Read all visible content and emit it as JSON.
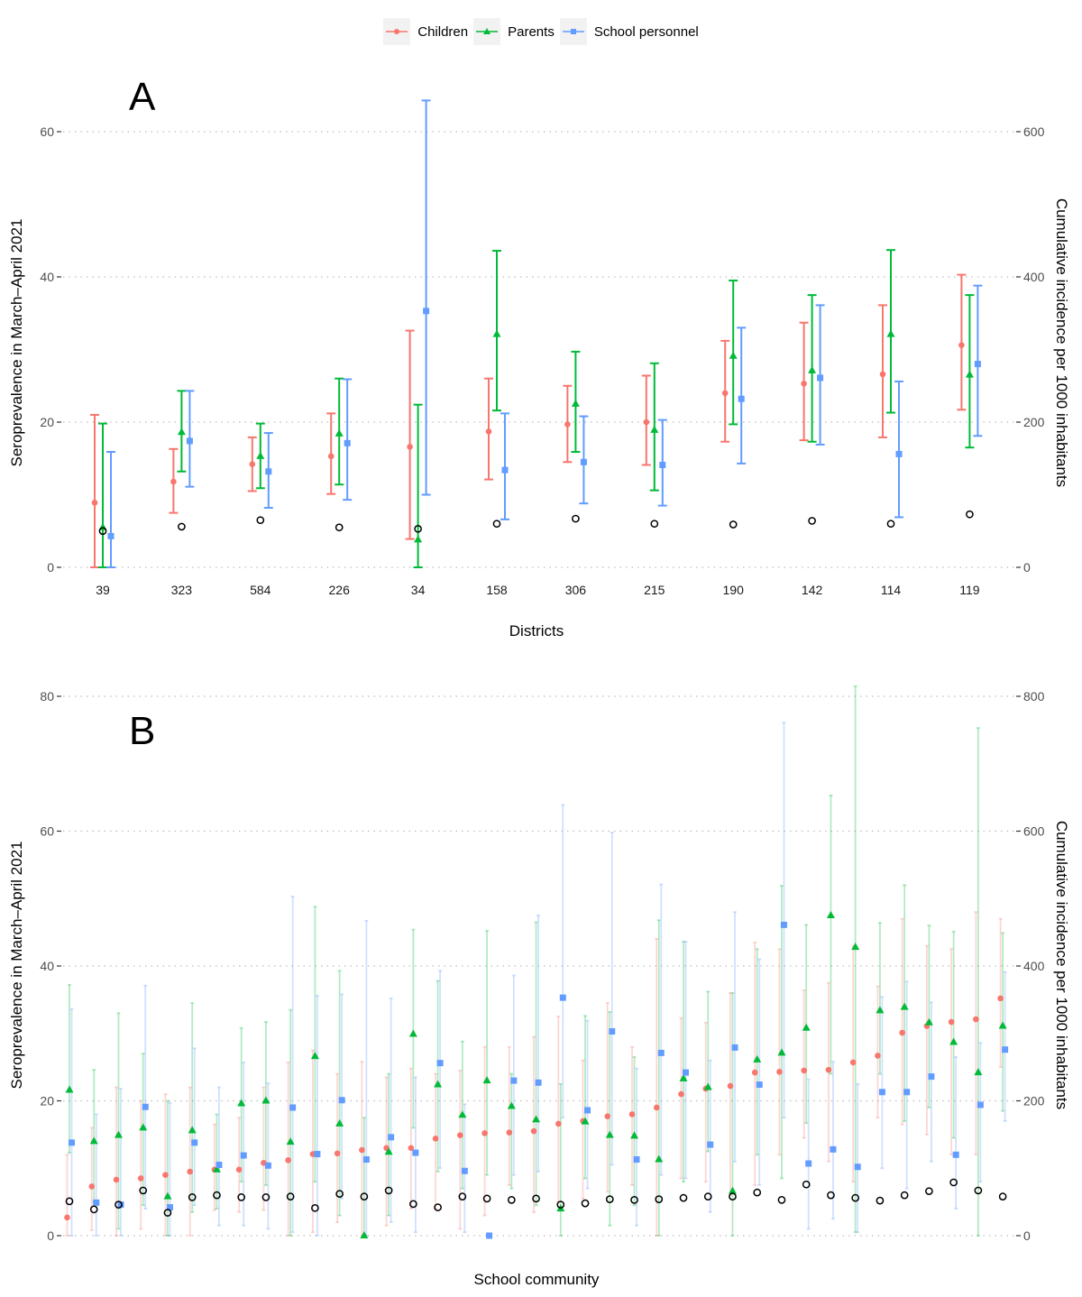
{
  "legend": {
    "items": [
      {
        "label": "Children",
        "color": "#F8766D",
        "shape": "circle"
      },
      {
        "label": "Parents",
        "color": "#00BA38",
        "shape": "triangle"
      },
      {
        "label": "School personnel",
        "color": "#619CFF",
        "shape": "square"
      }
    ]
  },
  "chart_data": [
    {
      "type": "scatter",
      "panel_label": "A",
      "xlabel": "Districts",
      "ylabel": "Seroprevalence in March–April 2021",
      "y2label": "Cumulative incidence per 1000 inhabitants",
      "ylim": [
        0,
        60
      ],
      "y2lim": [
        0,
        600
      ],
      "yticks": [
        "0",
        "20",
        "40",
        "60"
      ],
      "y2ticks": [
        "0",
        "200",
        "400",
        "600"
      ],
      "grid": true,
      "categories": [
        "39",
        "323",
        "584",
        "226",
        "34",
        "158",
        "306",
        "215",
        "190",
        "142",
        "114",
        "119"
      ],
      "series": [
        {
          "name": "Children",
          "values": [
            8.9,
            11.8,
            14.2,
            15.3,
            16.6,
            18.7,
            19.7,
            20.0,
            24.0,
            25.3,
            26.6,
            30.6
          ],
          "lower": [
            0,
            7.5,
            10.5,
            10.1,
            3.9,
            12.1,
            14.5,
            14.1,
            17.3,
            17.5,
            17.9,
            21.7
          ],
          "upper": [
            21.0,
            16.3,
            17.9,
            21.2,
            32.6,
            26.0,
            25.0,
            26.4,
            31.2,
            33.7,
            36.1,
            40.3
          ]
        },
        {
          "name": "Parents",
          "values": [
            5.5,
            18.6,
            15.3,
            18.4,
            3.8,
            32.1,
            22.5,
            18.9,
            29.1,
            27.1,
            32.1,
            26.5
          ],
          "lower": [
            0,
            13.2,
            10.9,
            11.4,
            0,
            21.6,
            15.9,
            10.6,
            19.7,
            17.3,
            21.3,
            16.5
          ],
          "upper": [
            19.8,
            24.3,
            19.8,
            26.0,
            22.4,
            43.6,
            29.7,
            28.1,
            39.5,
            37.5,
            43.7,
            37.5
          ]
        },
        {
          "name": "School personnel",
          "values": [
            4.3,
            17.4,
            13.2,
            17.1,
            35.3,
            13.4,
            14.5,
            14.1,
            23.2,
            26.1,
            15.6,
            28.0
          ],
          "lower": [
            0,
            11.1,
            8.2,
            9.3,
            10.0,
            6.6,
            8.8,
            8.5,
            14.3,
            16.9,
            6.9,
            18.1
          ],
          "upper": [
            15.9,
            24.3,
            18.5,
            25.9,
            64.3,
            21.2,
            20.8,
            20.3,
            33.0,
            36.1,
            25.6,
            38.8
          ]
        }
      ],
      "cumulative_incidence": [
        50,
        56,
        65,
        55,
        53,
        60,
        67,
        60,
        59,
        64,
        60,
        73
      ]
    },
    {
      "type": "scatter",
      "panel_label": "B",
      "xlabel": "School community",
      "ylabel": "Seroprevalence in March–April 2021",
      "y2label": "Cumulative incidence per 1000 inhabitants",
      "ylim": [
        0,
        80
      ],
      "y2lim": [
        0,
        800
      ],
      "yticks": [
        "0",
        "20",
        "40",
        "60",
        "80"
      ],
      "y2ticks": [
        "0",
        "200",
        "400",
        "600",
        "800"
      ],
      "grid": true,
      "n_groups": 39,
      "series": [
        {
          "name": "Children",
          "values": [
            2.7,
            7.3,
            8.3,
            8.5,
            9.0,
            9.5,
            9.8,
            9.8,
            10.8,
            11.2,
            12.1,
            12.2,
            12.7,
            13.0,
            13.0,
            14.4,
            14.9,
            15.2,
            15.3,
            15.5,
            16.6,
            17.0,
            17.7,
            18.0,
            19.0,
            21.0,
            21.8,
            22.2,
            24.2,
            24.3,
            24.5,
            24.6,
            25.7,
            26.7,
            30.1,
            31.1,
            31.7,
            32.1,
            35.2
          ],
          "lower": [
            0,
            0.8,
            0,
            1.0,
            0,
            0,
            3.8,
            3.5,
            3.8,
            0,
            0.5,
            2.0,
            0,
            1.5,
            4.0,
            4.0,
            1.0,
            3.0,
            7.5,
            3.5,
            5.0,
            5.5,
            6.5,
            7.5,
            0,
            8.5,
            8.0,
            6.0,
            7.5,
            12.0,
            14.5,
            11.0,
            8.0,
            17.5,
            16.5,
            15.0,
            12.0,
            12.0,
            25.0
          ],
          "upper": [
            12.0,
            16.0,
            22.0,
            20.0,
            21.0,
            22.0,
            16.5,
            17.5,
            22.0,
            25.7,
            27.5,
            24.0,
            25.8,
            23.5,
            24.8,
            24.0,
            24.5,
            28.0,
            28.0,
            29.5,
            32.5,
            26.0,
            34.5,
            28.0,
            44.0,
            32.3,
            31.6,
            36.0,
            43.5,
            42.5,
            36.4,
            37.5,
            43.0,
            37.0,
            47.0,
            43.0,
            42.5,
            48.0,
            47.0
          ]
        },
        {
          "name": "Parents",
          "values": [
            21.6,
            14.0,
            14.9,
            16.0,
            5.8,
            15.6,
            9.8,
            19.6,
            20.0,
            13.9,
            26.6,
            16.6,
            0,
            12.4,
            29.9,
            22.4,
            17.9,
            23.0,
            19.2,
            17.2,
            4.0,
            16.9,
            14.9,
            14.8,
            11.3,
            23.3,
            22.0,
            6.6,
            26.1,
            27.1,
            30.8,
            47.5,
            42.8,
            33.4,
            33.9,
            31.6,
            28.7,
            24.2,
            31.1
          ],
          "lower": [
            12.3,
            5.0,
            1.0,
            4.5,
            0,
            3.5,
            4.0,
            8.0,
            7.5,
            0,
            8.0,
            3.0,
            0,
            3.0,
            16.0,
            9.5,
            7.0,
            9.0,
            7.0,
            4.5,
            0,
            8.5,
            1.5,
            4.5,
            0,
            8.0,
            12.5,
            0,
            12.0,
            8.5,
            16.7,
            24.0,
            0.5,
            24.0,
            17.0,
            19.0,
            14.5,
            0,
            18.5
          ],
          "upper": [
            37.2,
            24.6,
            33.0,
            27.0,
            20.0,
            34.5,
            18.0,
            30.8,
            31.7,
            33.5,
            48.8,
            39.3,
            17.5,
            24.0,
            45.4,
            37.8,
            28.8,
            45.2,
            24.0,
            46.5,
            22.5,
            32.6,
            33.2,
            26.5,
            46.8,
            43.6,
            36.2,
            36.0,
            42.5,
            51.9,
            46.1,
            65.3,
            81.5,
            46.4,
            52.0,
            46.0,
            45.1,
            75.3,
            44.9
          ]
        },
        {
          "name": "School personnel",
          "values": [
            13.8,
            4.9,
            4.6,
            19.1,
            4.2,
            13.8,
            10.5,
            11.9,
            10.4,
            19.0,
            12.1,
            20.1,
            11.3,
            14.6,
            12.3,
            25.6,
            9.6,
            0,
            23.0,
            22.7,
            35.3,
            18.6,
            30.3,
            11.3,
            27.1,
            24.2,
            13.5,
            27.9,
            22.4,
            46.1,
            10.7,
            12.8,
            10.2,
            21.3,
            21.3,
            23.6,
            12.0,
            19.4,
            27.6
          ],
          "lower": [
            0,
            0,
            0,
            4.0,
            0,
            4.5,
            1.5,
            1.5,
            1.0,
            0.5,
            0,
            5.5,
            0,
            2.0,
            0.5,
            10.0,
            0.5,
            0,
            9.0,
            9.5,
            17.5,
            7.0,
            10.5,
            1.5,
            9.0,
            8.5,
            3.5,
            11.0,
            7.5,
            17.5,
            1.0,
            2.5,
            0.5,
            10.0,
            7.0,
            11.0,
            4.0,
            8.0,
            17.0
          ],
          "upper": [
            33.6,
            18.0,
            21.8,
            37.1,
            19.7,
            27.8,
            22.0,
            25.7,
            22.6,
            50.3,
            35.6,
            35.8,
            46.7,
            35.2,
            23.5,
            39.3,
            19.5,
            0,
            38.6,
            47.5,
            63.9,
            31.9,
            59.8,
            24.8,
            52.1,
            43.6,
            26.0,
            48.0,
            41.0,
            76.1,
            23.2,
            25.8,
            22.5,
            35.4,
            37.7,
            34.6,
            26.5,
            28.6,
            39.1
          ]
        }
      ],
      "cumulative_incidence": [
        51,
        39,
        46,
        67,
        34,
        57,
        60,
        57,
        57,
        58,
        41,
        62,
        58,
        67,
        47,
        42,
        58,
        55,
        53,
        55,
        46,
        48,
        54,
        53,
        54,
        56,
        58,
        58,
        64,
        53,
        76,
        60,
        56,
        52,
        60,
        66,
        79,
        67,
        58
      ]
    }
  ]
}
